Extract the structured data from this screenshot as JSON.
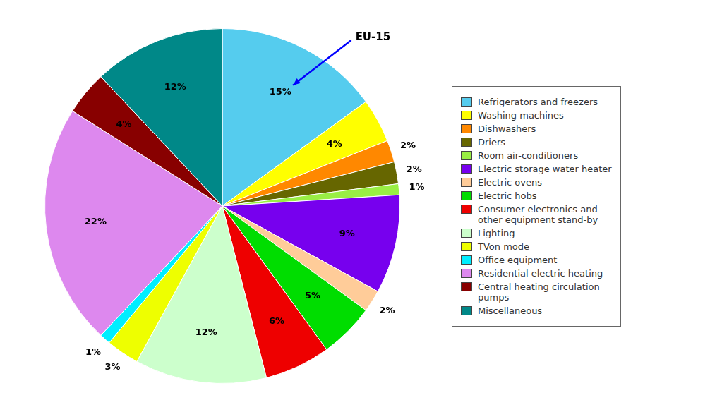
{
  "chart_data": {
    "type": "pie",
    "categories": [
      "Refrigerators and freezers",
      "Washing machines",
      "Dishwashers",
      "Driers",
      "Room air-conditioners",
      "Electric storage water heater",
      "Electric ovens",
      "Electric hobs",
      "Consumer electronics and\nother equipment stand-by",
      "Lighting",
      "TVon mode",
      "Office equipment",
      "Residential electric heating",
      "Central heating circulation\npumps",
      "Miscellaneous"
    ],
    "values": [
      15,
      4,
      2,
      2,
      1,
      9,
      2,
      5,
      6,
      12,
      3,
      1,
      22,
      4,
      12
    ],
    "value_labels": [
      "15%",
      "4%",
      "2%",
      "2%",
      "1%",
      "9%",
      "2%",
      "5%",
      "6%",
      "12%",
      "3%",
      "1%",
      "22%",
      "4%",
      "12%"
    ],
    "colors": [
      "#55CCEE",
      "#FFFF00",
      "#FF8800",
      "#666600",
      "#99EE44",
      "#7700EE",
      "#FFCC99",
      "#00DD00",
      "#EE0000",
      "#CCFFCC",
      "#EEFF00",
      "#00EEFF",
      "#DD88EE",
      "#880000",
      "#008888"
    ],
    "data_labels": true,
    "legend": "right",
    "annotations": [
      {
        "text": "EU-15",
        "category": "Refrigerators and freezers"
      }
    ]
  }
}
